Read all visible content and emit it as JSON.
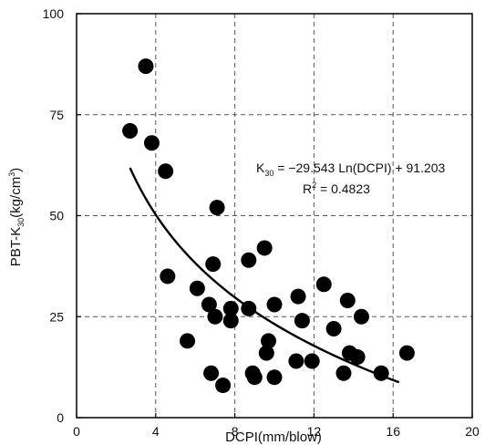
{
  "chart_data": {
    "type": "scatter",
    "xlim": [
      0,
      20
    ],
    "ylim": [
      0,
      100
    ],
    "x_ticks": [
      "0",
      "4",
      "8",
      "12",
      "16",
      "20"
    ],
    "y_ticks": [
      "0",
      "25",
      "50",
      "75",
      "100"
    ],
    "xlabel": "DCPI(mm/blow)",
    "ylabel_parts": {
      "a": "PBT-K",
      "sub": "30",
      "b": "(kg/cm",
      "sup": "3",
      "c": ")"
    },
    "grid": true,
    "points": [
      {
        "x": 2.7,
        "y": 71
      },
      {
        "x": 3.5,
        "y": 87
      },
      {
        "x": 3.8,
        "y": 68
      },
      {
        "x": 4.5,
        "y": 61
      },
      {
        "x": 4.6,
        "y": 35
      },
      {
        "x": 5.6,
        "y": 19
      },
      {
        "x": 6.1,
        "y": 32
      },
      {
        "x": 6.7,
        "y": 28
      },
      {
        "x": 6.8,
        "y": 11
      },
      {
        "x": 6.9,
        "y": 38
      },
      {
        "x": 7.0,
        "y": 25
      },
      {
        "x": 7.1,
        "y": 52
      },
      {
        "x": 7.4,
        "y": 8
      },
      {
        "x": 7.8,
        "y": 27
      },
      {
        "x": 7.8,
        "y": 24
      },
      {
        "x": 8.7,
        "y": 39
      },
      {
        "x": 8.7,
        "y": 27
      },
      {
        "x": 8.9,
        "y": 11
      },
      {
        "x": 9.0,
        "y": 10
      },
      {
        "x": 9.5,
        "y": 42
      },
      {
        "x": 9.6,
        "y": 16
      },
      {
        "x": 9.7,
        "y": 19
      },
      {
        "x": 10.0,
        "y": 10
      },
      {
        "x": 10.0,
        "y": 28
      },
      {
        "x": 11.1,
        "y": 14
      },
      {
        "x": 11.2,
        "y": 30
      },
      {
        "x": 11.4,
        "y": 24
      },
      {
        "x": 11.9,
        "y": 14
      },
      {
        "x": 12.5,
        "y": 33
      },
      {
        "x": 13.0,
        "y": 22
      },
      {
        "x": 13.5,
        "y": 11
      },
      {
        "x": 13.7,
        "y": 29
      },
      {
        "x": 13.8,
        "y": 16
      },
      {
        "x": 14.2,
        "y": 15
      },
      {
        "x": 14.4,
        "y": 25
      },
      {
        "x": 15.4,
        "y": 11
      },
      {
        "x": 16.7,
        "y": 16
      }
    ],
    "trendline": {
      "a": -29.543,
      "b": 91.203,
      "x_from": 2.7,
      "x_to": 16.3
    },
    "equation": {
      "k": "K",
      "sub": "30",
      "rest": " = −29.543 Ln(DCPI) + 91.203"
    },
    "r_squared": {
      "r": "R",
      "sup": "2",
      "rest": " = 0.4823"
    },
    "colors": {
      "point": "#000000",
      "line": "#000000",
      "grid": "#555555"
    }
  }
}
